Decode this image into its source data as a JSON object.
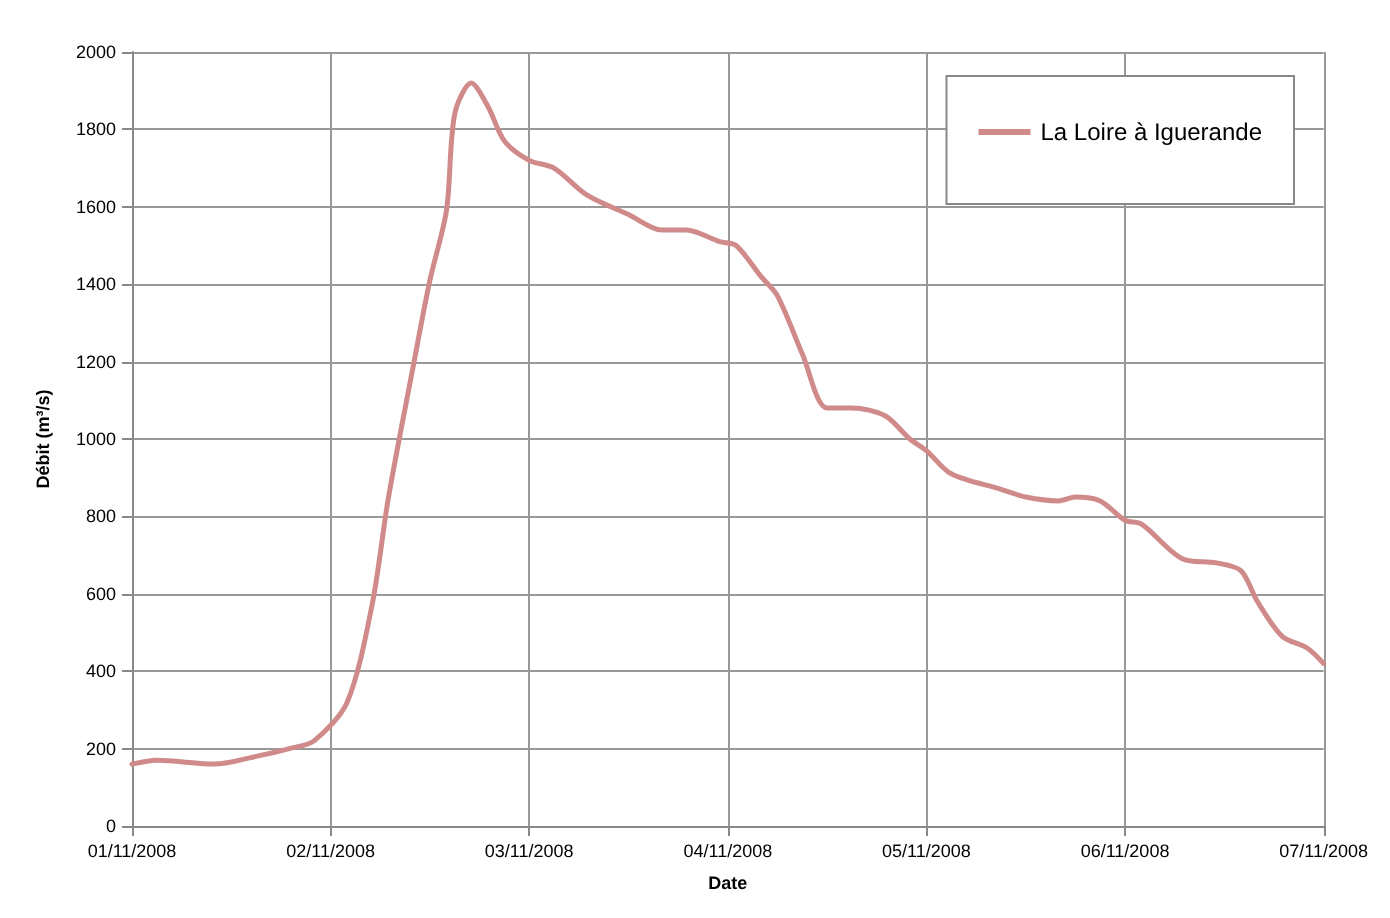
{
  "chart_data": {
    "type": "line",
    "xlabel": "Date",
    "ylabel": "Débit (m³/s)",
    "x": [
      "2008-11-01T00:00",
      "2008-11-01T03:00",
      "2008-11-01T10:00",
      "2008-11-01T15:00",
      "2008-11-01T19:00",
      "2008-11-01T22:00",
      "2008-11-02T02:00",
      "2008-11-02T05:00",
      "2008-11-02T07:00",
      "2008-11-02T10:00",
      "2008-11-02T12:00",
      "2008-11-02T14:00",
      "2008-11-02T15:00",
      "2008-11-02T17:00",
      "2008-11-02T19:00",
      "2008-11-02T21:00",
      "2008-11-03T00:00",
      "2008-11-03T03:00",
      "2008-11-03T07:00",
      "2008-11-03T12:00",
      "2008-11-03T16:00",
      "2008-11-03T19:00",
      "2008-11-03T23:00",
      "2008-11-04T01:00",
      "2008-11-04T04:00",
      "2008-11-04T06:00",
      "2008-11-04T09:00",
      "2008-11-04T12:00",
      "2008-11-04T15:00",
      "2008-11-04T19:00",
      "2008-11-04T22:00",
      "2008-11-05T00:00",
      "2008-11-05T03:00",
      "2008-11-05T09:00",
      "2008-11-05T12:00",
      "2008-11-05T16:00",
      "2008-11-05T18:00",
      "2008-11-05T21:00",
      "2008-11-06T00:00",
      "2008-11-06T02:00",
      "2008-11-06T07:00",
      "2008-11-06T11:00",
      "2008-11-06T14:00",
      "2008-11-06T16:00",
      "2008-11-06T19:00",
      "2008-11-06T22:00",
      "2008-11-07T00:00"
    ],
    "series": [
      {
        "name": "La Loire à Iguerande",
        "color": "#d08a8a",
        "values": [
          160,
          170,
          160,
          180,
          200,
          220,
          320,
          570,
          850,
          1190,
          1410,
          1590,
          1840,
          1920,
          1860,
          1770,
          1720,
          1700,
          1630,
          1580,
          1540,
          1540,
          1510,
          1500,
          1420,
          1370,
          1220,
          1080,
          1080,
          1060,
          1000,
          970,
          910,
          870,
          850,
          840,
          850,
          840,
          790,
          780,
          690,
          680,
          660,
          580,
          490,
          460,
          420
        ]
      }
    ],
    "xlim": [
      "2008-11-01",
      "2008-11-07"
    ],
    "xticks": [
      {
        "value": "2008-11-01",
        "label": "01/11/2008"
      },
      {
        "value": "2008-11-02",
        "label": "02/11/2008"
      },
      {
        "value": "2008-11-03",
        "label": "03/11/2008"
      },
      {
        "value": "2008-11-04",
        "label": "04/11/2008"
      },
      {
        "value": "2008-11-05",
        "label": "05/11/2008"
      },
      {
        "value": "2008-11-06",
        "label": "06/11/2008"
      },
      {
        "value": "2008-11-07",
        "label": "07/11/2008"
      }
    ],
    "ylim": [
      0,
      2000
    ],
    "yticks": [
      0,
      200,
      400,
      600,
      800,
      1000,
      1200,
      1400,
      1600,
      1800,
      2000
    ],
    "grid": true,
    "legend": "top right",
    "marker": "none",
    "line_style": "solid"
  }
}
